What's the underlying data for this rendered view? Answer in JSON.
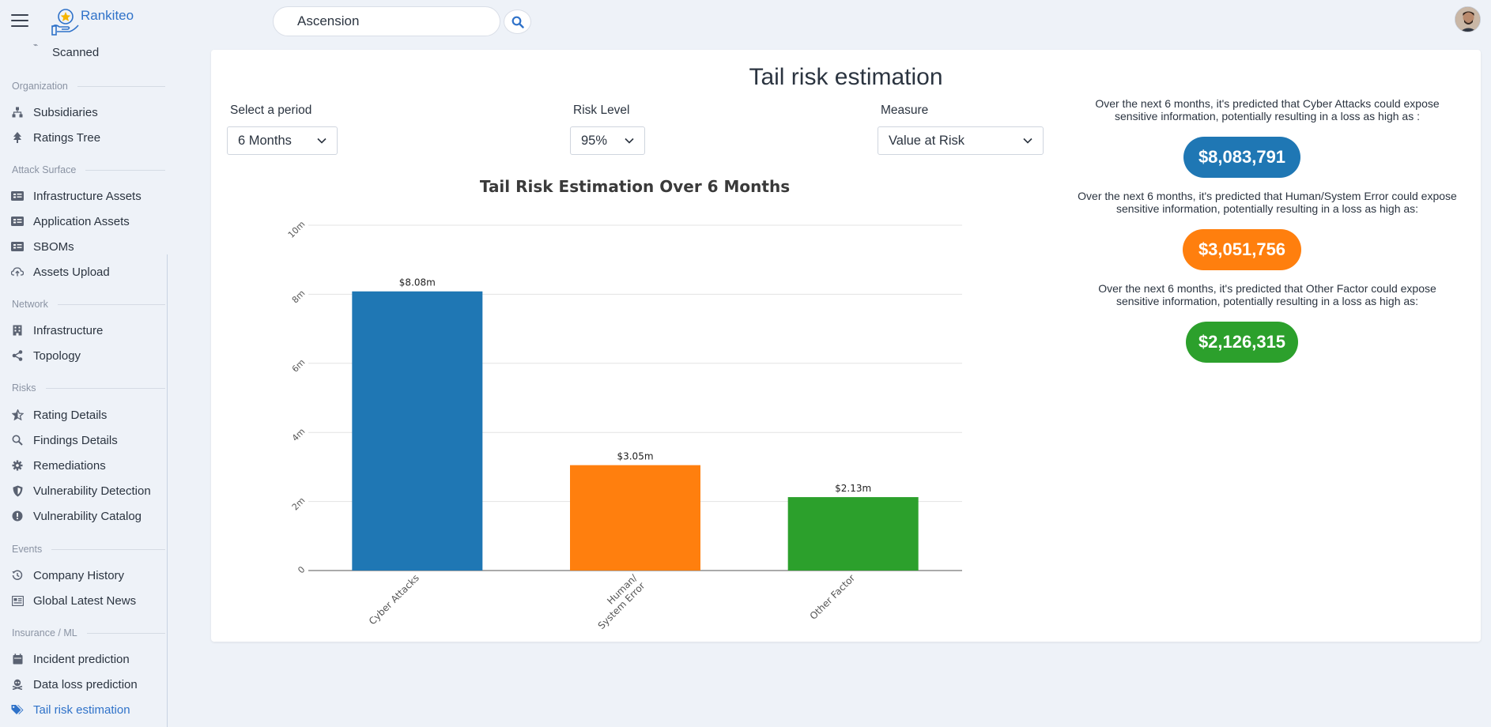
{
  "app": {
    "name": "Rankiteo"
  },
  "search": {
    "value": "Ascension"
  },
  "sidebar": {
    "top_item": "Scanned",
    "sections": [
      {
        "label": "Organization",
        "items": [
          "Subsidiaries",
          "Ratings Tree"
        ]
      },
      {
        "label": "Attack Surface",
        "items": [
          "Infrastructure Assets",
          "Application Assets",
          "SBOMs",
          "Assets Upload"
        ]
      },
      {
        "label": "Network",
        "items": [
          "Infrastructure",
          "Topology"
        ]
      },
      {
        "label": "Risks",
        "items": [
          "Rating Details",
          "Findings Details",
          "Remediations",
          "Vulnerability Detection",
          "Vulnerability Catalog"
        ]
      },
      {
        "label": "Events",
        "items": [
          "Company History",
          "Global Latest News"
        ]
      },
      {
        "label": "Insurance / ML",
        "items": [
          "Incident prediction",
          "Data loss prediction",
          "Tail risk estimation"
        ]
      }
    ],
    "active_item": "Tail risk estimation",
    "active_color": "#2f72c9"
  },
  "main": {
    "title": "Tail risk estimation",
    "period": {
      "label": "Select a period",
      "value": "6 Months"
    },
    "risk_level": {
      "label": "Risk Level",
      "value": "95%"
    },
    "measure": {
      "label": "Measure",
      "value": "Value at Risk"
    },
    "predictions": [
      {
        "text": "Over the next 6 months, it's predicted that Cyber Attacks could expose sensitive information, potentially resulting in a loss as high as :",
        "amount": "$8,083,791",
        "color": "#1f77b4"
      },
      {
        "text": "Over the next 6 months, it's predicted that Human/System Error could expose sensitive information, potentially resulting in a loss as high as:",
        "amount": "$3,051,756",
        "color": "#ff7f0e"
      },
      {
        "text": "Over the next 6 months, it's predicted that Other Factor could expose sensitive information, potentially resulting in a loss as high as:",
        "amount": "$2,126,315",
        "color": "#2ca02c"
      }
    ]
  },
  "chart_data": {
    "type": "bar",
    "title": "Tail Risk Estimation Over 6 Months",
    "categories": [
      "Cyber Attacks",
      "Human/\nSystem Error",
      "Other Factor"
    ],
    "values": [
      8083791,
      3051756,
      2126315
    ],
    "data_labels": [
      "$8.08m",
      "$3.05m",
      "$2.13m"
    ],
    "colors": [
      "#1f77b4",
      "#ff7f0e",
      "#2ca02c"
    ],
    "ylim": [
      0,
      10000000
    ],
    "yticks": [
      0,
      2000000,
      4000000,
      6000000,
      8000000,
      10000000
    ],
    "ytick_labels": [
      "0",
      "2m",
      "4m",
      "6m",
      "8m",
      "10m"
    ],
    "grid": true,
    "xlabel": "",
    "ylabel": ""
  }
}
